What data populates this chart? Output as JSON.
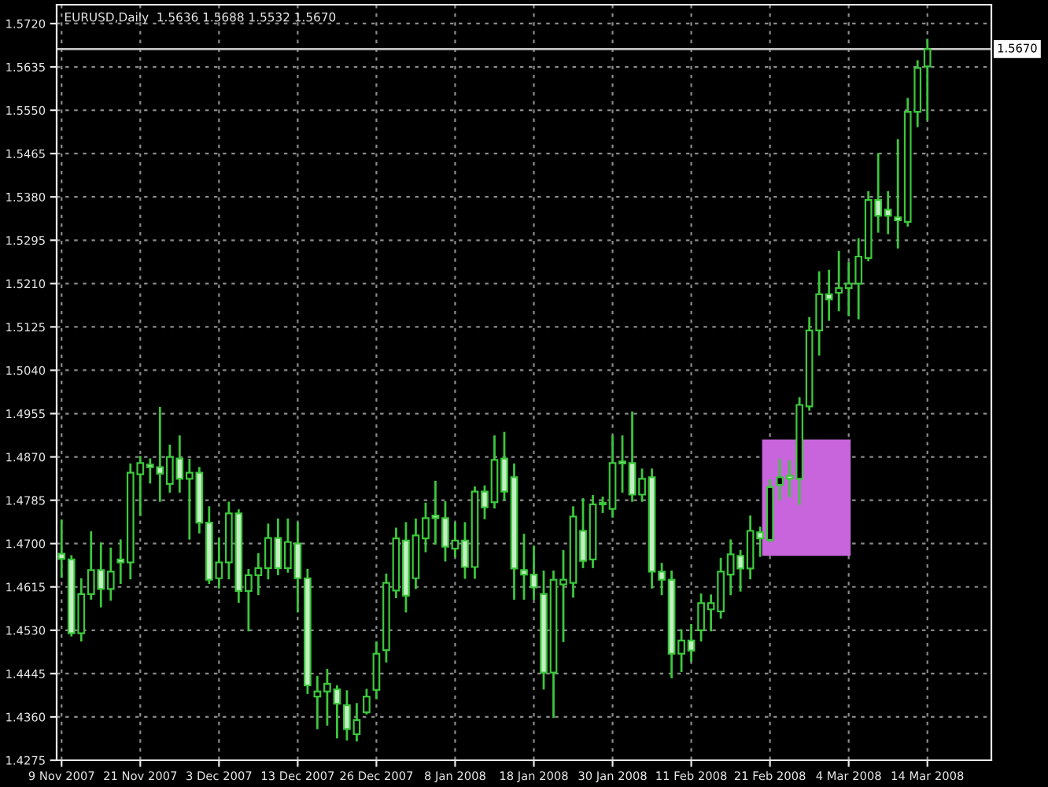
{
  "chart_data": {
    "type": "candlestick",
    "title": "EURUSD,Daily  1.5636 1.5688 1.5532 1.5670",
    "categories": [
      "9 Nov 2007",
      null,
      null,
      null,
      null,
      null,
      null,
      null,
      "21 Nov 2007",
      null,
      null,
      null,
      null,
      null,
      null,
      null,
      "3 Dec 2007",
      null,
      null,
      null,
      null,
      null,
      null,
      null,
      "13 Dec 2007",
      null,
      null,
      null,
      null,
      null,
      null,
      null,
      "26 Dec 2007",
      null,
      null,
      null,
      null,
      null,
      null,
      null,
      "8 Jan 2008",
      null,
      null,
      null,
      null,
      null,
      null,
      null,
      "18 Jan 2008",
      null,
      null,
      null,
      null,
      null,
      null,
      null,
      "30 Jan 2008",
      null,
      null,
      null,
      null,
      null,
      null,
      null,
      "11 Feb 2008",
      null,
      null,
      null,
      null,
      null,
      null,
      null,
      "21 Feb 2008",
      null,
      null,
      null,
      null,
      null,
      null,
      null,
      "4 Mar 2008",
      null,
      null,
      null,
      null,
      null,
      null,
      null,
      "14 Mar 2008"
    ],
    "color": "#3cc83c",
    "ohlc": [
      [
        1.468,
        1.4745,
        1.4635,
        1.467
      ],
      [
        1.4669,
        1.4675,
        1.452,
        1.4524
      ],
      [
        1.4524,
        1.463,
        1.451,
        1.4601
      ],
      [
        1.4601,
        1.4722,
        1.4592,
        1.4648
      ],
      [
        1.4648,
        1.47,
        1.4577,
        1.4611
      ],
      [
        1.4611,
        1.469,
        1.459,
        1.4645
      ],
      [
        1.4669,
        1.4706,
        1.4623,
        1.4663
      ],
      [
        1.4663,
        1.4855,
        1.4632,
        1.4839
      ],
      [
        1.4836,
        1.487,
        1.4756,
        1.4858
      ],
      [
        1.4855,
        1.4865,
        1.482,
        1.485
      ],
      [
        1.485,
        1.4966,
        1.4784,
        1.4837
      ],
      [
        1.4817,
        1.4892,
        1.4802,
        1.487
      ],
      [
        1.4867,
        1.491,
        1.4802,
        1.4827
      ],
      [
        1.4827,
        1.4864,
        1.471,
        1.4839
      ],
      [
        1.4839,
        1.4848,
        1.4722,
        1.4741
      ],
      [
        1.4741,
        1.4771,
        1.4623,
        1.4629
      ],
      [
        1.4632,
        1.471,
        1.4614,
        1.4663
      ],
      [
        1.4663,
        1.478,
        1.4632,
        1.4759
      ],
      [
        1.4759,
        1.4765,
        1.4586,
        1.4607
      ],
      [
        1.4607,
        1.4648,
        1.453,
        1.4638
      ],
      [
        1.4638,
        1.4679,
        1.4601,
        1.4652
      ],
      [
        1.4652,
        1.4737,
        1.4632,
        1.4711
      ],
      [
        1.4711,
        1.4747,
        1.464,
        1.4652
      ],
      [
        1.4652,
        1.4747,
        1.4645,
        1.4703
      ],
      [
        1.47,
        1.474,
        1.4567,
        1.4632
      ],
      [
        1.4632,
        1.4648,
        1.4407,
        1.4422
      ],
      [
        1.44,
        1.4438,
        1.4338,
        1.441
      ],
      [
        1.441,
        1.4452,
        1.4345,
        1.4425
      ],
      [
        1.4414,
        1.442,
        1.432,
        1.4386
      ],
      [
        1.4383,
        1.441,
        1.4316,
        1.4336
      ],
      [
        1.4326,
        1.4385,
        1.4314,
        1.4354
      ],
      [
        1.4369,
        1.4413,
        1.4367,
        1.44
      ],
      [
        1.4413,
        1.4506,
        1.4397,
        1.4484
      ],
      [
        1.4491,
        1.4639,
        1.4469,
        1.4623
      ],
      [
        1.4608,
        1.4729,
        1.4595,
        1.471
      ],
      [
        1.4706,
        1.474,
        1.4567,
        1.4598
      ],
      [
        1.4632,
        1.4747,
        1.4613,
        1.4716
      ],
      [
        1.471,
        1.4778,
        1.4685,
        1.475
      ],
      [
        1.4755,
        1.4821,
        1.47,
        1.475
      ],
      [
        1.475,
        1.4781,
        1.4667,
        1.4694
      ],
      [
        1.469,
        1.474,
        1.4675,
        1.4706
      ],
      [
        1.4706,
        1.474,
        1.4633,
        1.4654
      ],
      [
        1.4654,
        1.481,
        1.4633,
        1.4802
      ],
      [
        1.4802,
        1.4812,
        1.475,
        1.4771
      ],
      [
        1.4781,
        1.491,
        1.4771,
        1.4864
      ],
      [
        1.4867,
        1.4917,
        1.4787,
        1.4802
      ],
      [
        1.483,
        1.4855,
        1.4592,
        1.4651
      ],
      [
        1.4648,
        1.4717,
        1.4592,
        1.4639
      ],
      [
        1.4639,
        1.4694,
        1.4592,
        1.4614
      ],
      [
        1.4601,
        1.4645,
        1.4416,
        1.4447
      ],
      [
        1.4447,
        1.4645,
        1.436,
        1.4629
      ],
      [
        1.462,
        1.4685,
        1.4509,
        1.4629
      ],
      [
        1.4623,
        1.4771,
        1.4596,
        1.4753
      ],
      [
        1.4725,
        1.4787,
        1.4654,
        1.4666
      ],
      [
        1.4669,
        1.4793,
        1.4654,
        1.4777
      ],
      [
        1.4777,
        1.479,
        1.4762,
        1.478
      ],
      [
        1.4768,
        1.491,
        1.4753,
        1.4858
      ],
      [
        1.4861,
        1.491,
        1.4802,
        1.4857
      ],
      [
        1.4858,
        1.4957,
        1.4784,
        1.4796
      ],
      [
        1.4796,
        1.4845,
        1.4784,
        1.4827
      ],
      [
        1.483,
        1.4845,
        1.4614,
        1.4645
      ],
      [
        1.4645,
        1.466,
        1.4601,
        1.4629
      ],
      [
        1.4629,
        1.4645,
        1.4438,
        1.4484
      ],
      [
        1.4484,
        1.453,
        1.445,
        1.451
      ],
      [
        1.451,
        1.454,
        1.447,
        1.449
      ],
      [
        1.453,
        1.46,
        1.451,
        1.4583
      ],
      [
        1.4571,
        1.4598,
        1.453,
        1.4583
      ],
      [
        1.4567,
        1.467,
        1.4555,
        1.4645
      ],
      [
        1.4639,
        1.4706,
        1.4601,
        1.4679
      ],
      [
        1.4676,
        1.4685,
        1.4608,
        1.4651
      ],
      [
        1.4651,
        1.4753,
        1.4632,
        1.4725
      ],
      [
        1.4722,
        1.4731,
        1.4676,
        1.471
      ],
      [
        1.4707,
        1.4824,
        1.4705,
        1.4811
      ],
      [
        1.4815,
        1.4864,
        1.4787,
        1.483
      ],
      [
        1.4833,
        1.4861,
        1.4793,
        1.4827
      ],
      [
        1.4827,
        1.4985,
        1.4778,
        1.4972
      ],
      [
        1.4969,
        1.5142,
        1.4963,
        1.5118
      ],
      [
        1.5118,
        1.5232,
        1.5071,
        1.5189
      ],
      [
        1.5189,
        1.5235,
        1.5139,
        1.5179
      ],
      [
        1.5192,
        1.5272,
        1.5158,
        1.5201
      ],
      [
        1.5201,
        1.525,
        1.5148,
        1.521
      ],
      [
        1.521,
        1.5297,
        1.5142,
        1.5263
      ],
      [
        1.526,
        1.5389,
        1.5256,
        1.5374
      ],
      [
        1.5374,
        1.5464,
        1.5312,
        1.5343
      ],
      [
        1.5355,
        1.5389,
        1.5309,
        1.5343
      ],
      [
        1.534,
        1.5491,
        1.5281,
        1.5334
      ],
      [
        1.5331,
        1.5572,
        1.5324,
        1.5547
      ],
      [
        1.5547,
        1.5646,
        1.5519,
        1.5633
      ],
      [
        1.5636,
        1.5688,
        1.5532,
        1.567
      ]
    ],
    "ylim": [
      1.4275,
      1.5757
    ],
    "yticks": [
      {
        "value": 1.4275,
        "label": "1.4275"
      },
      {
        "value": 1.436,
        "label": "1.4360"
      },
      {
        "value": 1.4445,
        "label": "1.4445"
      },
      {
        "value": 1.453,
        "label": "1.4530"
      },
      {
        "value": 1.4615,
        "label": "1.4615"
      },
      {
        "value": 1.47,
        "label": "1.4700"
      },
      {
        "value": 1.4785,
        "label": "1.4785"
      },
      {
        "value": 1.487,
        "label": "1.4870"
      },
      {
        "value": 1.4955,
        "label": "1.4955"
      },
      {
        "value": 1.504,
        "label": "1.5040"
      },
      {
        "value": 1.5125,
        "label": "1.5125"
      },
      {
        "value": 1.521,
        "label": "1.5210"
      },
      {
        "value": 1.5295,
        "label": "1.5295"
      },
      {
        "value": 1.538,
        "label": "1.5380"
      },
      {
        "value": 1.5465,
        "label": "1.5465"
      },
      {
        "value": 1.555,
        "label": "1.5550"
      },
      {
        "value": 1.5635,
        "label": "1.5635"
      },
      {
        "value": 1.572,
        "label": "1.5720"
      }
    ],
    "ref_lines": [
      {
        "axis": "y",
        "value": 1.567,
        "label": "1.5670",
        "color": "#c0c0c0"
      }
    ],
    "grid": true
  }
}
